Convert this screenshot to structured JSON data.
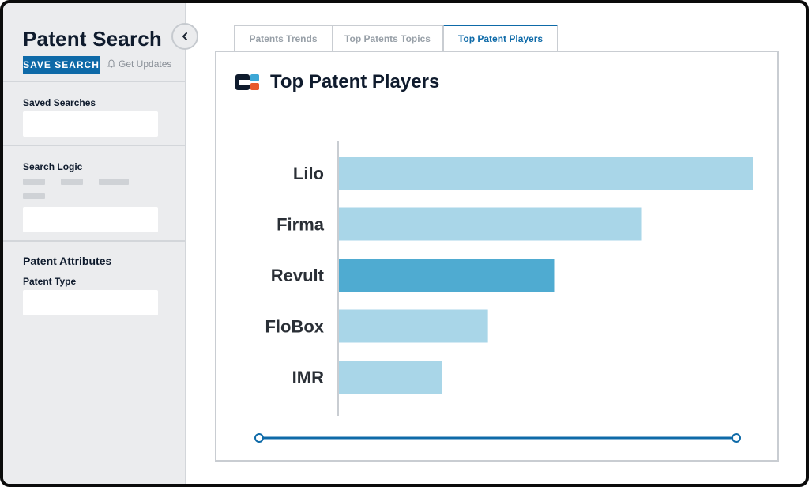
{
  "sidebar": {
    "title": "Patent Search",
    "save_label": "SAVE SEARCH",
    "get_updates_label": "Get Updates",
    "saved_searches_label": "Saved Searches",
    "search_logic_label": "Search Logic",
    "patent_attributes_heading": "Patent Attributes",
    "patent_type_label": "Patent Type"
  },
  "tabs": [
    {
      "label": "Patents Trends",
      "active": false
    },
    {
      "label": "Top Patents Topics",
      "active": false
    },
    {
      "label": "Top Patent Players",
      "active": true
    }
  ],
  "panel": {
    "title": "Top Patent Players"
  },
  "colors": {
    "accent": "#0e6aa8",
    "bar": "#a9d6e8",
    "bar_highlight": "#4fabd1"
  },
  "chart_data": {
    "type": "bar",
    "orientation": "horizontal",
    "categories": [
      "Lilo",
      "Firma",
      "Revult",
      "FloBox",
      "IMR"
    ],
    "values": [
      100,
      73,
      52,
      36,
      25
    ],
    "highlight": "Revult",
    "xlim": [
      0,
      100
    ],
    "grid": false
  }
}
